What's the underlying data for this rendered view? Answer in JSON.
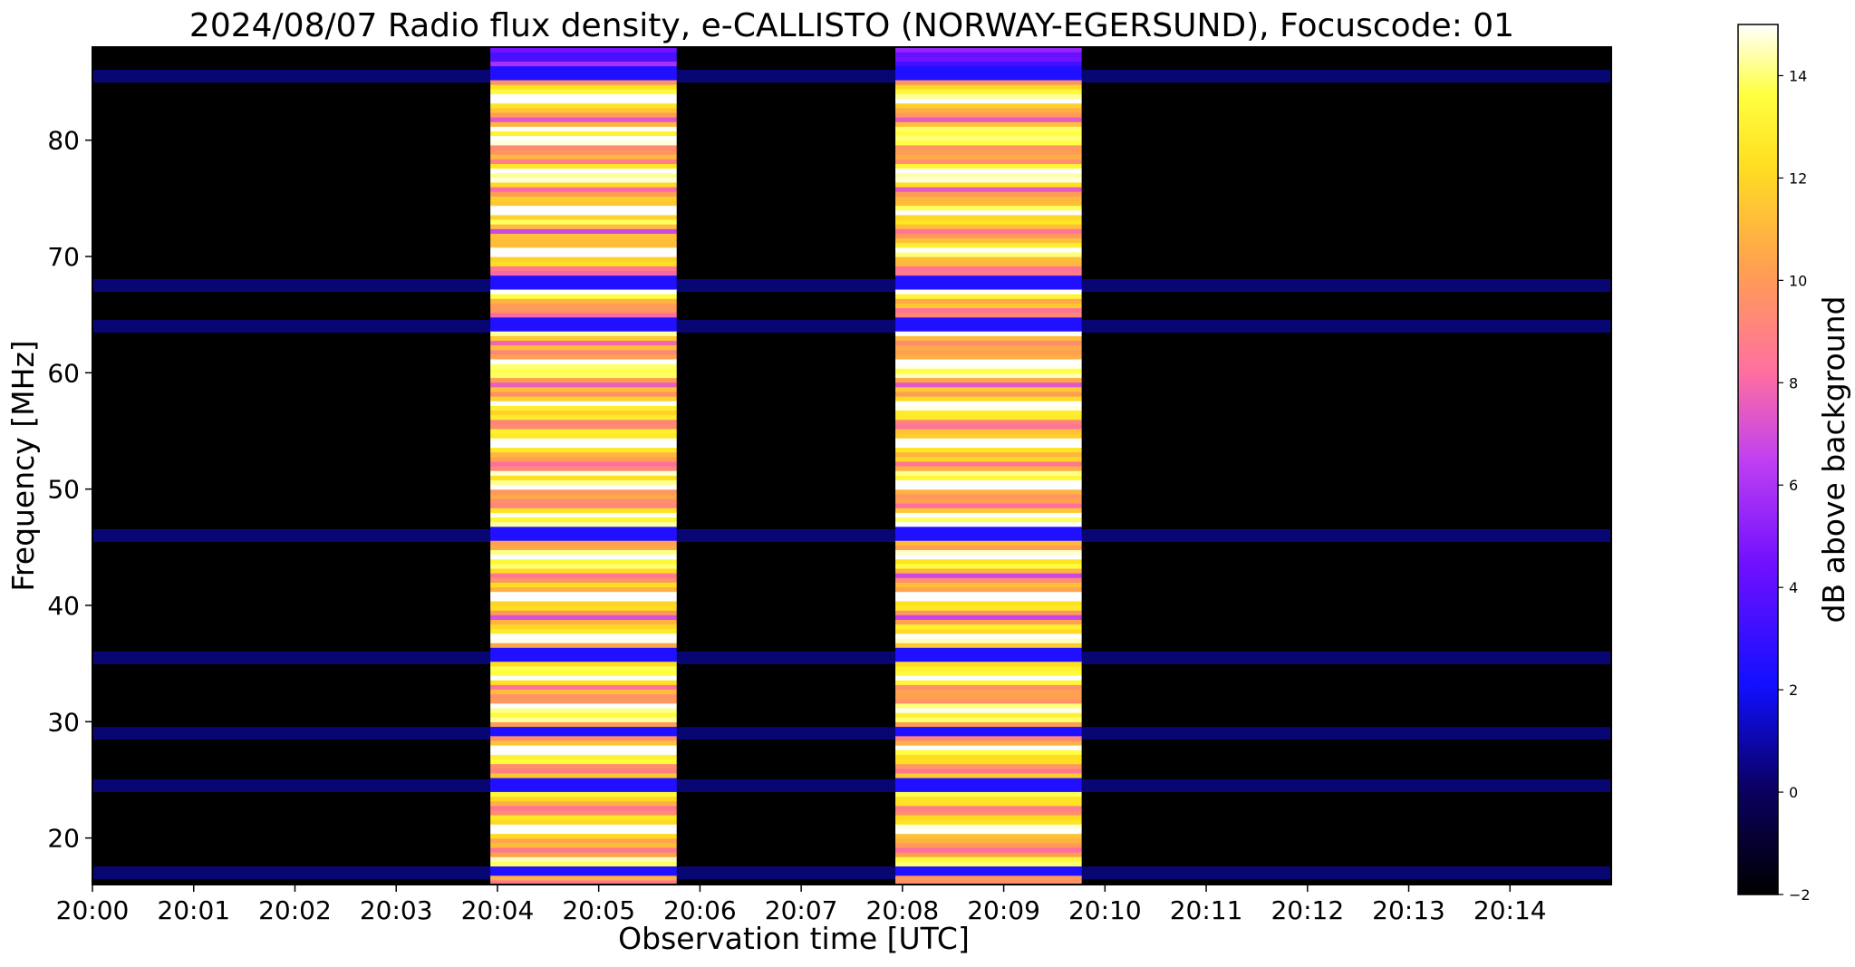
{
  "chart_data": {
    "type": "heatmap",
    "title": "2024/08/07  Radio flux density, e-CALLISTO (NORWAY-EGERSUND), Focuscode: 01",
    "xlabel": "Observation time [UTC]",
    "ylabel": "Frequency [MHz]",
    "x_ticks": [
      "20:00",
      "20:01",
      "20:02",
      "20:03",
      "20:04",
      "20:05",
      "20:06",
      "20:07",
      "20:08",
      "20:09",
      "20:10",
      "20:11",
      "20:12",
      "20:13",
      "20:14"
    ],
    "x_tick_minutes": [
      0,
      1,
      2,
      3,
      4,
      5,
      6,
      7,
      8,
      9,
      10,
      11,
      12,
      13,
      14
    ],
    "xlim_minutes": [
      0,
      15
    ],
    "y_ticks": [
      "20",
      "30",
      "40",
      "50",
      "60",
      "70",
      "80"
    ],
    "y_tick_values": [
      20,
      30,
      40,
      50,
      60,
      70,
      80
    ],
    "ylim": [
      16,
      88
    ],
    "colorbar": {
      "label": "dB above background",
      "colormap": "gnuplot2",
      "range": [
        -2,
        15
      ],
      "ticks": [
        "−2",
        "0",
        "2",
        "4",
        "6",
        "8",
        "10",
        "12",
        "14"
      ],
      "tick_values": [
        -2,
        0,
        2,
        4,
        6,
        8,
        10,
        12,
        14
      ]
    },
    "events": [
      {
        "start_minute": 3.93,
        "end_minute": 5.77,
        "level_db": 12
      },
      {
        "start_minute": 7.93,
        "end_minute": 9.77,
        "level_db": 12
      }
    ],
    "persistent_interference_mhz": [
      17,
      24.5,
      29,
      35.5,
      46,
      64,
      67.5,
      85.5
    ],
    "background_level_db": -2
  }
}
